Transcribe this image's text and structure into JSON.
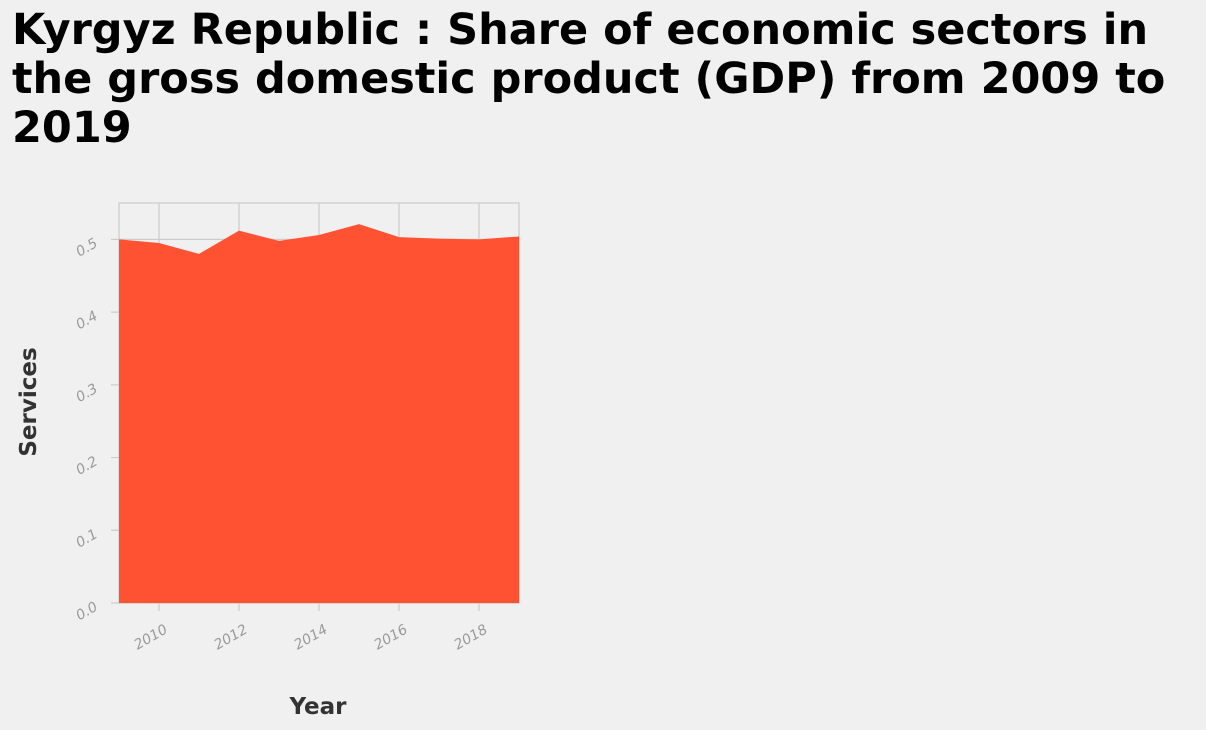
{
  "chart_data": {
    "type": "area",
    "title": "Kyrgyz Republic : Share of economic sectors in the gross domestic product (GDP) from 2009 to 2019",
    "xlabel": "Year",
    "ylabel": "Services",
    "x": [
      2009,
      2010,
      2011,
      2012,
      2013,
      2014,
      2015,
      2016,
      2017,
      2018,
      2019
    ],
    "series": [
      {
        "name": "",
        "values": [
          0.5,
          0.495,
          0.48,
          0.512,
          0.498,
          0.506,
          0.521,
          0.503,
          0.501,
          0.5,
          0.504
        ]
      }
    ],
    "xlim": [
      2009,
      2019
    ],
    "ylim": [
      0.0,
      0.55
    ],
    "xticks": [
      "2010",
      "2012",
      "2014",
      "2016",
      "2018"
    ],
    "yticks": [
      "0.0",
      "0.1",
      "0.2",
      "0.3",
      "0.4",
      "0.5"
    ],
    "grid": true,
    "colors": {
      "fill": "#ff5233",
      "grid": "#cccccc",
      "background": "#f0f0f0"
    }
  }
}
